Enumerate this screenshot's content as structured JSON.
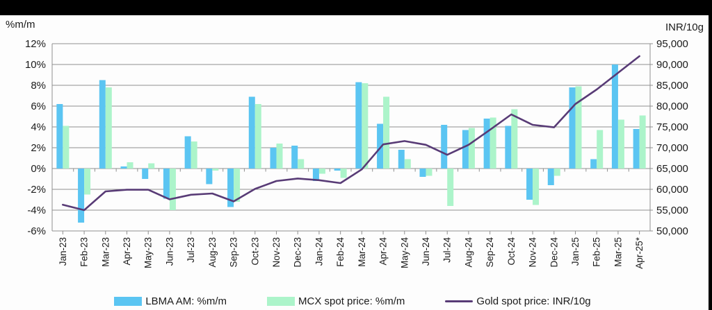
{
  "chart_data": {
    "type": "bar",
    "subtype": "dual-axis bar+line combo",
    "categories": [
      "Jan-23",
      "Feb-23",
      "Mar-23",
      "Apr-23",
      "May-23",
      "Jun-23",
      "Jul-23",
      "Aug-23",
      "Sep-23",
      "Oct-23",
      "Nov-23",
      "Dec-23",
      "Jan-24",
      "Feb-24",
      "Mar-24",
      "Apr-24",
      "May-24",
      "Jun-24",
      "Jul-24",
      "Aug-24",
      "Sep-24",
      "Oct-24",
      "Nov-24",
      "Dec-24",
      "Jan-25",
      "Feb-25",
      "Mar-25",
      "Apr-25*"
    ],
    "series": [
      {
        "name": "LBMA AM: %m/m",
        "type": "bar",
        "axis": "left",
        "color": "#5BC5F2",
        "values": [
          6.2,
          -5.2,
          8.5,
          0.2,
          -1.0,
          -2.9,
          3.1,
          -1.5,
          -3.7,
          6.9,
          2.0,
          2.2,
          -1.2,
          -0.2,
          8.3,
          4.3,
          1.8,
          -0.8,
          4.2,
          3.7,
          4.8,
          4.1,
          -3.0,
          -1.6,
          7.8,
          0.9,
          10.0,
          3.8
        ]
      },
      {
        "name": "MCX spot price: %m/m",
        "type": "bar",
        "axis": "left",
        "color": "#ACF4CA",
        "values": [
          4.1,
          -2.5,
          7.8,
          0.6,
          0.5,
          -4.0,
          2.6,
          -0.2,
          -3.2,
          6.2,
          2.4,
          0.9,
          -0.5,
          -0.9,
          8.2,
          6.9,
          0.9,
          -0.7,
          -3.6,
          3.9,
          4.9,
          5.7,
          -3.5,
          -0.7,
          7.9,
          3.7,
          4.7,
          5.1
        ]
      },
      {
        "name": "Gold spot price: INR/10g",
        "type": "line",
        "axis": "right",
        "color": "#583B76",
        "values": [
          56300,
          55000,
          59500,
          59900,
          59900,
          57600,
          58700,
          59000,
          57100,
          60100,
          62000,
          62600,
          62200,
          61500,
          64800,
          70800,
          71600,
          70700,
          68300,
          70700,
          74300,
          78000,
          75500,
          74900,
          80500,
          84000,
          88000,
          92000
        ]
      }
    ],
    "left_axis": {
      "title": "%m/m",
      "min": -6,
      "max": 12,
      "tick_labels": [
        "12%",
        "10%",
        "8%",
        "6%",
        "4%",
        "2%",
        "0%",
        "-2%",
        "-4%",
        "-6%"
      ]
    },
    "right_axis": {
      "title": "INR/10g",
      "min": 50000,
      "max": 95000,
      "tick_labels": [
        "95,000",
        "90,000",
        "85,000",
        "80,000",
        "75,000",
        "70,000",
        "65,000",
        "60,000",
        "55,000",
        "50,000"
      ]
    },
    "grid": "horizontal",
    "legend_position": "bottom",
    "colors": {
      "gridline": "#8f8f8f",
      "axis_text": "#1a1a1a",
      "top_bar": "#000000"
    }
  }
}
